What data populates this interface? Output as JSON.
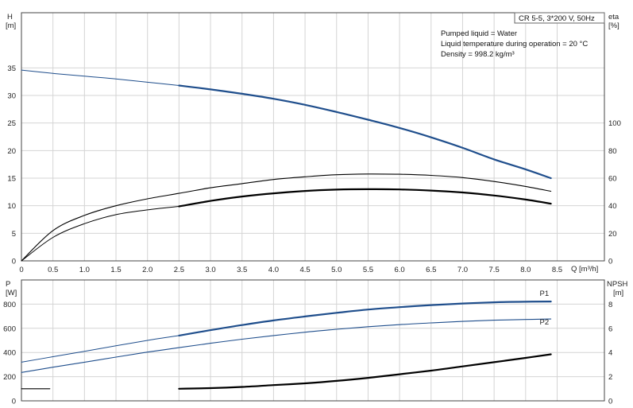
{
  "chart_data": [
    {
      "type": "line",
      "title": "CR 5-5, 3*200 V, 50Hz",
      "notes": [
        "Pumped liquid = Water",
        "Liquid temperature during operation = 20 °C",
        "Density = 998.2 kg/m³"
      ],
      "xlabel": "Q [m³/h]",
      "ylabel_left": [
        "H",
        "[m]"
      ],
      "ylabel_right": [
        "eta",
        "[%]"
      ],
      "xlim": [
        0,
        9.25
      ],
      "ylim_left": [
        0,
        45
      ],
      "ylim_right": [
        0,
        180
      ],
      "x_ticks": [
        "0",
        "0.5",
        "1.0",
        "1.5",
        "2.0",
        "2.5",
        "3.0",
        "3.5",
        "4.0",
        "4.5",
        "5.0",
        "5.5",
        "6.0",
        "6.5",
        "7.0",
        "7.5",
        "8.0",
        "8.5"
      ],
      "y_ticks_left": [
        "0",
        "5",
        "10",
        "15",
        "20",
        "25",
        "30",
        "35"
      ],
      "y_ticks_right": [
        "0",
        "20",
        "40",
        "60",
        "80",
        "100"
      ],
      "grid": true,
      "series": [
        {
          "name": "",
          "color": "#1f4e8c",
          "width": 2.2,
          "axis": "left",
          "x": [
            2.5,
            3.0,
            3.5,
            4.0,
            4.5,
            5.0,
            5.5,
            6.0,
            6.5,
            7.0,
            7.5,
            8.0,
            8.4
          ],
          "y": [
            31.8,
            31.1,
            30.3,
            29.4,
            28.3,
            27.0,
            25.6,
            24.1,
            22.4,
            20.5,
            18.4,
            16.6,
            15.0
          ]
        },
        {
          "name": "",
          "color": "#1f4e8c",
          "width": 1,
          "axis": "left",
          "x": [
            0.0,
            0.5,
            1.0,
            1.5,
            2.0,
            2.5
          ],
          "y": [
            34.6,
            34.0,
            33.5,
            33.0,
            32.4,
            31.8
          ]
        },
        {
          "name": "",
          "color": "#000000",
          "width": 1.1,
          "axis": "right",
          "x": [
            0.0,
            0.5,
            1.0,
            1.5,
            2.0,
            2.5,
            3.0,
            3.5,
            4.0,
            4.5,
            5.0,
            5.5,
            6.0,
            6.5,
            7.0,
            7.5,
            8.0,
            8.4
          ],
          "y": [
            0,
            22,
            33,
            40,
            45,
            49,
            53,
            56,
            59,
            61,
            62.5,
            63,
            62.8,
            62,
            60.4,
            57.6,
            54,
            50.5
          ]
        },
        {
          "name": "",
          "color": "#000000",
          "width": 2.2,
          "axis": "right",
          "x": [
            2.5,
            3.0,
            3.5,
            4.0,
            4.5,
            5.0,
            5.5,
            6.0,
            6.5,
            7.0,
            7.5,
            8.0,
            8.4
          ],
          "y": [
            39.5,
            43.5,
            46.7,
            49,
            50.7,
            51.7,
            52,
            51.8,
            51,
            49.6,
            47.4,
            44.5,
            41.5
          ]
        },
        {
          "name": "",
          "color": "#000000",
          "width": 1,
          "axis": "right",
          "x": [
            0.0,
            0.5,
            1.0,
            1.5,
            2.0,
            2.5
          ],
          "y": [
            0,
            17,
            27,
            33.5,
            37,
            39.5
          ]
        }
      ]
    },
    {
      "type": "line",
      "xlim": [
        0,
        9.25
      ],
      "ylabel_left": [
        "P",
        "[W]"
      ],
      "ylabel_right": [
        "NPSH",
        "[m]"
      ],
      "ylim_left": [
        0,
        1000
      ],
      "ylim_right": [
        0,
        10
      ],
      "y_ticks_left": [
        "0",
        "200",
        "400",
        "600",
        "800"
      ],
      "y_ticks_right": [
        "0",
        "2",
        "4",
        "6",
        "8"
      ],
      "grid": true,
      "labels": [
        {
          "text": "P1",
          "x": 8.4,
          "y": 855
        },
        {
          "text": "P2",
          "x": 8.4,
          "y": 620
        }
      ],
      "series": [
        {
          "name": "P1",
          "color": "#1f4e8c",
          "width": 2.2,
          "axis": "left",
          "x": [
            2.5,
            3.0,
            3.5,
            4.0,
            4.5,
            5.0,
            5.5,
            6.0,
            6.5,
            7.0,
            7.5,
            8.0,
            8.4
          ],
          "y": [
            540,
            585,
            627,
            665,
            698,
            728,
            755,
            775,
            792,
            805,
            815,
            820,
            822
          ]
        },
        {
          "name": "",
          "color": "#1f4e8c",
          "width": 1,
          "axis": "left",
          "x": [
            0.0,
            0.5,
            1.0,
            1.5,
            2.0,
            2.5
          ],
          "y": [
            320,
            365,
            410,
            455,
            500,
            540
          ]
        },
        {
          "name": "P2",
          "color": "#1f4e8c",
          "width": 1.1,
          "axis": "left",
          "x": [
            0.0,
            0.5,
            1.0,
            1.5,
            2.0,
            2.5,
            3.0,
            3.5,
            4.0,
            4.5,
            5.0,
            5.5,
            6.0,
            6.5,
            7.0,
            7.5,
            8.0,
            8.4
          ],
          "y": [
            235,
            278,
            320,
            362,
            403,
            440,
            476,
            510,
            540,
            568,
            592,
            613,
            630,
            645,
            657,
            667,
            673,
            677
          ]
        },
        {
          "name": "",
          "color": "#000000",
          "width": 2.2,
          "axis": "right",
          "x": [
            2.5,
            3.0,
            3.5,
            4.0,
            4.5,
            5.0,
            5.5,
            6.0,
            6.5,
            7.0,
            7.5,
            8.0,
            8.4
          ],
          "y": [
            1.0,
            1.05,
            1.15,
            1.3,
            1.45,
            1.65,
            1.9,
            2.2,
            2.5,
            2.85,
            3.2,
            3.55,
            3.85
          ]
        },
        {
          "name": "",
          "color": "#000000",
          "width": 1.2,
          "axis": "right",
          "x": [
            0.0,
            0.45
          ],
          "y": [
            1.0,
            1.0
          ]
        }
      ]
    }
  ]
}
